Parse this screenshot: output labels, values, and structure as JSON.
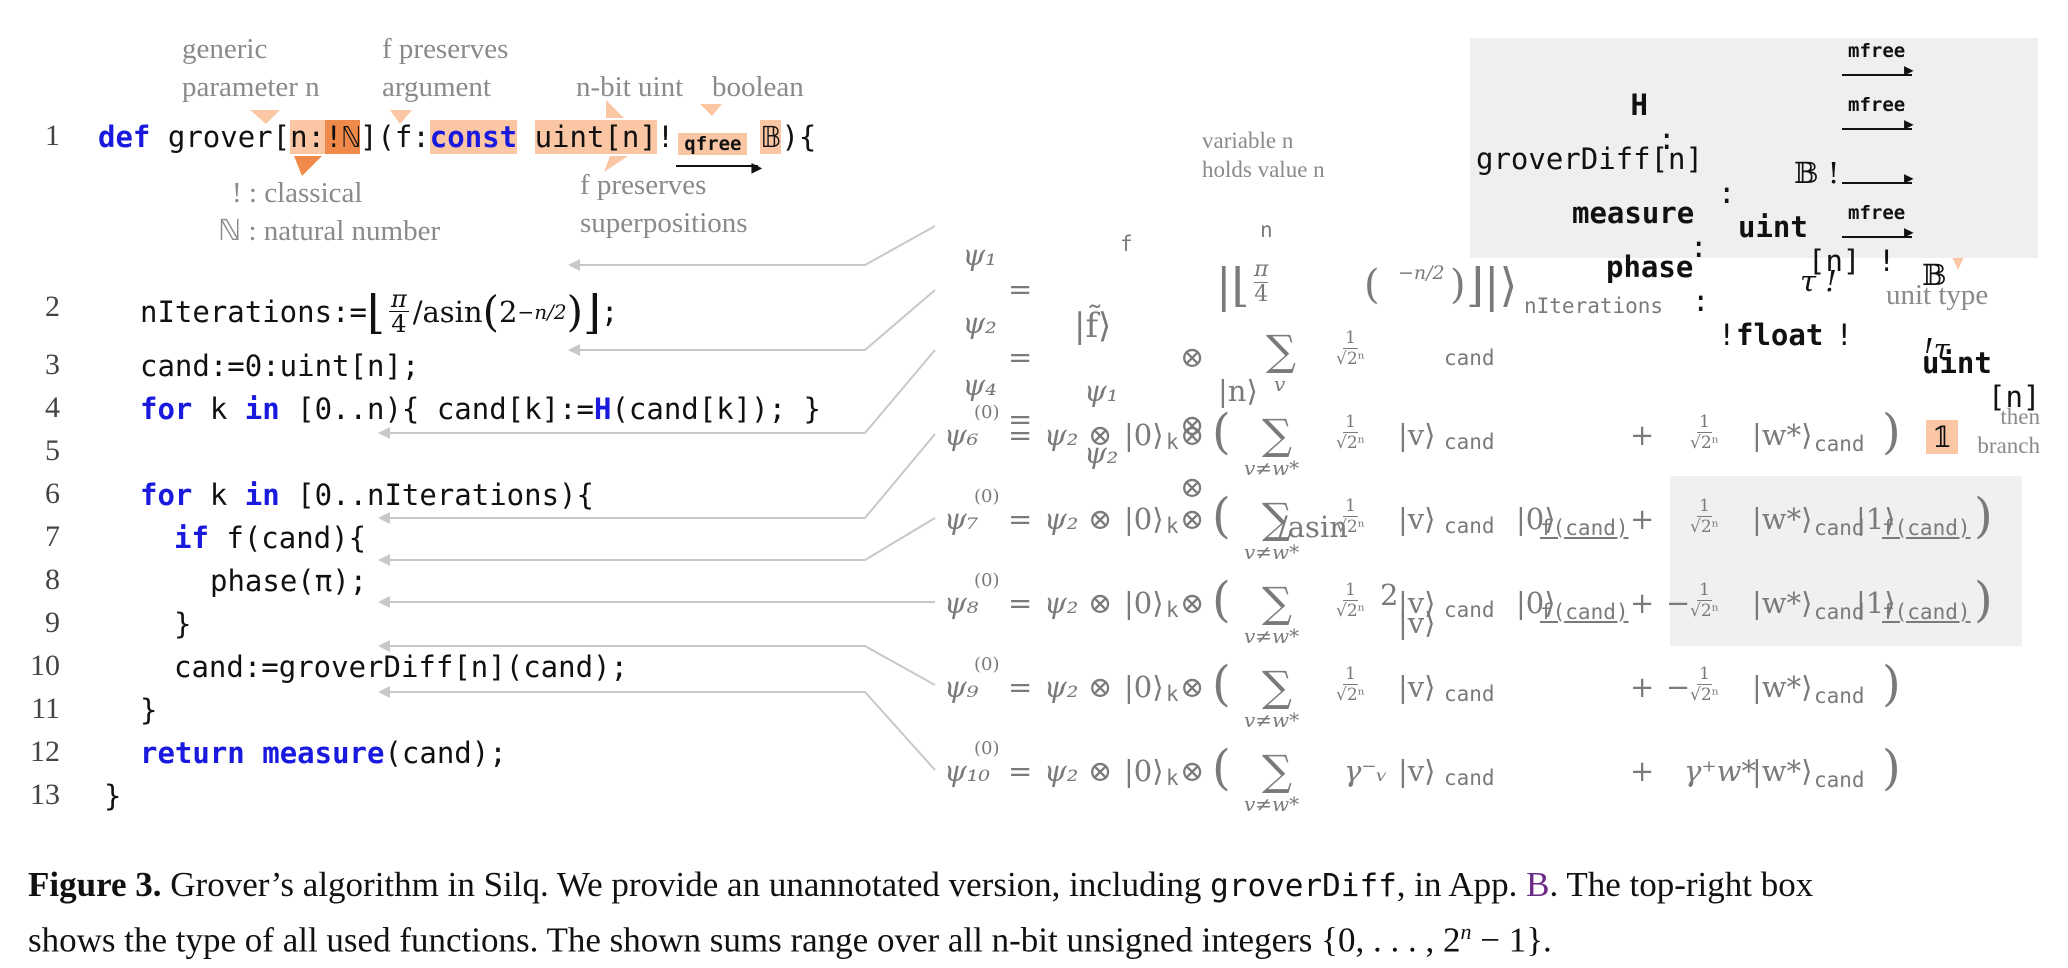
{
  "annotations": {
    "generic_param": [
      "generic",
      "parameter n"
    ],
    "f_preserves_arg": [
      "f preserves",
      "argument"
    ],
    "nbit": "n-bit uint",
    "boolean": "boolean",
    "classical": "! : classical",
    "natural": "ℕ : natural number",
    "f_preserves_sup": [
      "f preserves",
      "superpositions"
    ],
    "variable_n": [
      "variable n",
      "holds value n"
    ],
    "unit_type": "unit type",
    "then_branch": [
      "then",
      "branch"
    ]
  },
  "code": {
    "line_numbers": [
      "1",
      "2",
      "3",
      "4",
      "5",
      "6",
      "7",
      "8",
      "9",
      "10",
      "11",
      "12",
      "13"
    ],
    "l1": {
      "def": "def",
      "name": "grover[",
      "n": "n:",
      "bang": "!",
      "nat": "ℕ",
      "close": "](f:",
      "const": "const",
      "sp": " ",
      "uint": "uint[n]",
      "bang2": "!",
      "qfree": "qfree",
      "bool": "𝔹",
      "end": "){"
    },
    "l2": {
      "pre": "nIterations:=",
      "pi": "π",
      "four": "4",
      "asin": "/asin",
      "two": "2",
      "exp": "−n/2",
      "end": ";"
    },
    "l3": "cand:=0:uint[n];",
    "l4": {
      "for": "for",
      "k": " k ",
      "in": "in",
      "rest1": " [0..n){ cand[k]:=",
      "H": "H",
      "rest2": "(cand[k]); }"
    },
    "l6": {
      "for": "for",
      "k": " k ",
      "in": "in",
      "rest": " [0..nIterations){"
    },
    "l7": {
      "if": "if",
      "rest": " f(cand){"
    },
    "l8": "phase(π);",
    "l9": "}",
    "l10": "cand:=groverDiff[n](cand);",
    "l11": "}",
    "l12": {
      "return": "return",
      "measure": "measure",
      "rest": "(cand);"
    },
    "l13": "}"
  },
  "types": {
    "H": {
      "name": "H",
      "colon": ":",
      "lhs": "𝔹 !",
      "label": "mfree",
      "rhs": "𝔹"
    },
    "groverDiff": {
      "name": "groverDiff[n]",
      "colon": ":",
      "lhs_t": "uint",
      "lhs_n": "[n] !",
      "label": "mfree",
      "rhs_t": "uint",
      "rhs_n": "[n]"
    },
    "measure": {
      "name": "measure",
      "colon": ":",
      "lhs": "τ !",
      "label": "",
      "rhs": "!τ"
    },
    "phase": {
      "name": "phase",
      "colon": ":",
      "lhs_b": "!",
      "lhs_t": "float",
      "lhs_e": " !",
      "label": "mfree",
      "rhs": "𝟙"
    }
  },
  "states": {
    "psi1": {
      "sym": "ψ₁",
      "eq": "=",
      "val": "|f̃⟩",
      "sub": "f",
      "ket": "|n⟩",
      "ket_sub": "n"
    },
    "psi2": {
      "sym": "ψ₂",
      "eq": "=",
      "val": "ψ₁",
      "pi": "π",
      "four": "4",
      "asin": "/asin",
      "two": "2",
      "exp": "−n/2",
      "sub": "nIterations"
    },
    "psi4": {
      "sym": "ψ₄",
      "eq": "=",
      "val": "ψ₂",
      "sum_under": "v",
      "ket": "|v⟩",
      "sub": "cand"
    },
    "rows": [
      {
        "sym": "ψ₆",
        "sup": "(0)",
        "sum_under": "v≠w*",
        "coef": "",
        "extra": "",
        "plus": "+",
        "neg": "",
        "extra2": "",
        "gamma_v": "",
        "gamma_w": ""
      },
      {
        "sym": "ψ₇",
        "sup": "(0)",
        "sum_under": "v≠w*",
        "coef": "",
        "extra": "|0⟩",
        "plus": "+",
        "neg": "",
        "extra2": "|1⟩",
        "gamma_v": "",
        "gamma_w": ""
      },
      {
        "sym": "ψ₈",
        "sup": "(0)",
        "sum_under": "v≠w*",
        "coef": "",
        "extra": "|0⟩",
        "plus": "+",
        "neg": "−",
        "extra2": "|1⟩",
        "gamma_v": "",
        "gamma_w": ""
      },
      {
        "sym": "ψ₉",
        "sup": "(0)",
        "sum_under": "v≠w*",
        "coef": "",
        "extra": "",
        "plus": "+",
        "neg": "−",
        "extra2": "",
        "gamma_v": "",
        "gamma_w": ""
      },
      {
        "sym": "ψ₁₀",
        "sup": "(0)",
        "sum_under": "v≠w*",
        "coef": "",
        "extra": "",
        "plus": "+",
        "neg": "",
        "extra2": "",
        "gamma_v": "γ⁻ᵥ",
        "gamma_w": "γ⁺w*"
      }
    ],
    "common": {
      "eq": "=",
      "psi2": "ψ₂",
      "otimes": "⊗",
      "zero_k": "|0⟩",
      "k": "k",
      "one": "1",
      "sqrt": "√2ⁿ",
      "v": "|v⟩",
      "w": "|w*⟩",
      "cand": "cand",
      "fcand": "f(cand)",
      "lparen": "(",
      "rparen": ")",
      "sigma": "∑"
    }
  },
  "caption": {
    "label": "Figure 3.",
    "t1": " Grover’s algorithm in Silq. We provide an unannotated version, including ",
    "code": "groverDiff",
    "t2": ", in App. ",
    "link": "B",
    "t3": ". The top-right box",
    "t4": "shows the type of all used functions. The shown sums range over all n-bit unsigned integers {0, . . . , 2",
    "sup": "n",
    "t5": " − 1}."
  }
}
